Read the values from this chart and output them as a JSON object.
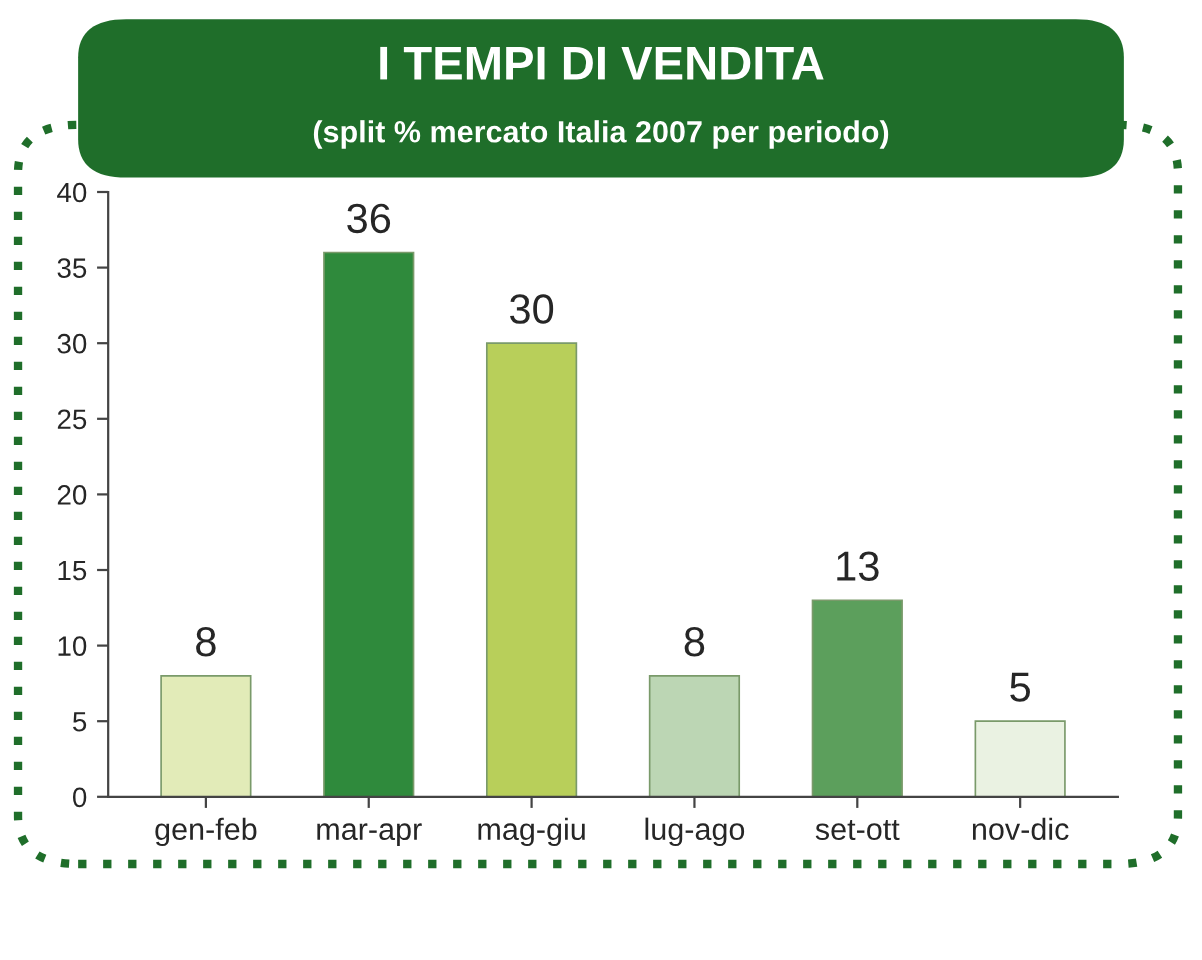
{
  "chart_data": {
    "type": "bar",
    "title": "I TEMPI DI VENDITA",
    "subtitle": "(split % mercato Italia 2007 per periodo)",
    "categories": [
      "gen-feb",
      "mar-apr",
      "mag-giu",
      "lug-ago",
      "set-ott",
      "nov-dic"
    ],
    "values": [
      8,
      36,
      30,
      8,
      13,
      5
    ],
    "colors": [
      "#e2ebb8",
      "#2f8a3c",
      "#b8cf5a",
      "#bcd6b4",
      "#5c9f5c",
      "#eaf2e2"
    ],
    "ylim": [
      0,
      40
    ],
    "yticks": [
      0,
      5,
      10,
      15,
      20,
      25,
      30,
      35,
      40
    ],
    "grid": false,
    "data_labels": true
  }
}
